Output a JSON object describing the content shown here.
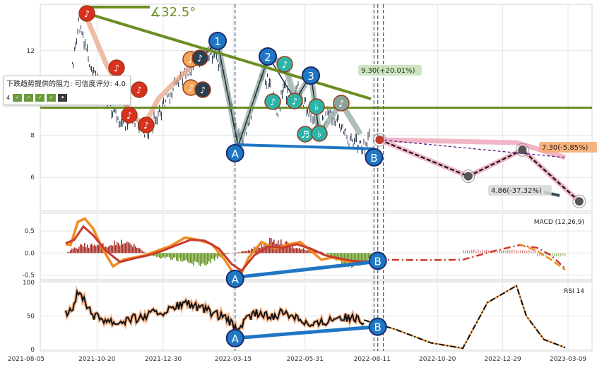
{
  "chart_data": [
    {
      "type": "line",
      "panel": "price",
      "x_ticks": [
        "2021-08-05",
        "2021-10-20",
        "2021-12-30",
        "2022-03-15",
        "2022-05-31",
        "2022-08-11",
        "2022-10-20",
        "2022-12-29",
        "2023-03-09"
      ],
      "y_ticks": [
        6,
        8,
        12
      ],
      "ylim": [
        4.4,
        14.2
      ],
      "grid": true,
      "trendline_angle_label": "∡32.5°",
      "resistance_label": "下跌趋势提供的阻力: 可信度评分: 4.0",
      "resistance_level": 9.3,
      "pattern_points": [
        {
          "label": "A",
          "date": "2022-03-17",
          "value": 7.55
        },
        {
          "label": "B",
          "date": "2022-08-13",
          "value": 7.35
        },
        {
          "label": "1",
          "date": "2022-02-11",
          "value": 12.0
        },
        {
          "label": "2",
          "date": "2022-04-22",
          "value": 10.9
        },
        {
          "label": "3",
          "date": "2022-06-07",
          "value": 10.6
        }
      ],
      "projections": [
        {
          "label": "9.30(+20.01%)",
          "date": "2022-08-19",
          "value": 9.3
        },
        {
          "label": "7.30(-5.85%)",
          "date": "2023-01-19",
          "value": 7.3
        },
        {
          "label": "4.86(-37.32%)",
          "date": "2023-03-21",
          "value": 4.86
        }
      ],
      "projected_path": [
        {
          "date": "2022-08-19",
          "value": 7.78
        },
        {
          "date": "2022-11-22",
          "value": 6.05
        },
        {
          "date": "2023-01-19",
          "value": 7.3
        },
        {
          "date": "2023-03-21",
          "value": 4.86
        }
      ],
      "current_price": 7.78
    },
    {
      "type": "line",
      "panel": "macd",
      "label": "MACD (12,26,9)",
      "y_ticks": [
        -0.5,
        0.0,
        0.5
      ],
      "ylim": [
        -0.6,
        0.9
      ],
      "divergence": [
        {
          "label": "A",
          "date": "2022-03-17",
          "value": -0.55
        },
        {
          "label": "B",
          "date": "2022-08-17",
          "value": -0.19
        }
      ]
    },
    {
      "type": "line",
      "panel": "rsi",
      "label": "RSI 14",
      "y_ticks": [
        0,
        50,
        100
      ],
      "ylim": [
        -2,
        102
      ],
      "divergence": [
        {
          "label": "A",
          "date": "2022-03-17",
          "value": 17
        },
        {
          "label": "B",
          "date": "2022-08-17",
          "value": 34
        }
      ]
    }
  ],
  "colors": {
    "trend": "#6b8e23",
    "pattern_blue": "#1f77c4",
    "projection_pink": "#f1b6c6",
    "macd_orange": "#f28a1e",
    "macd_red": "#c83a2a",
    "note_red": "#d8321e",
    "note_orange": "#f3a55a",
    "note_teal": "#2bb5a8",
    "note_gray": "#8aa39a",
    "dark_navy": "#2c3e50"
  },
  "icons": {
    "note": "♪",
    "double_note": "♫",
    "beam_note": "♬",
    "flat": "♭"
  }
}
